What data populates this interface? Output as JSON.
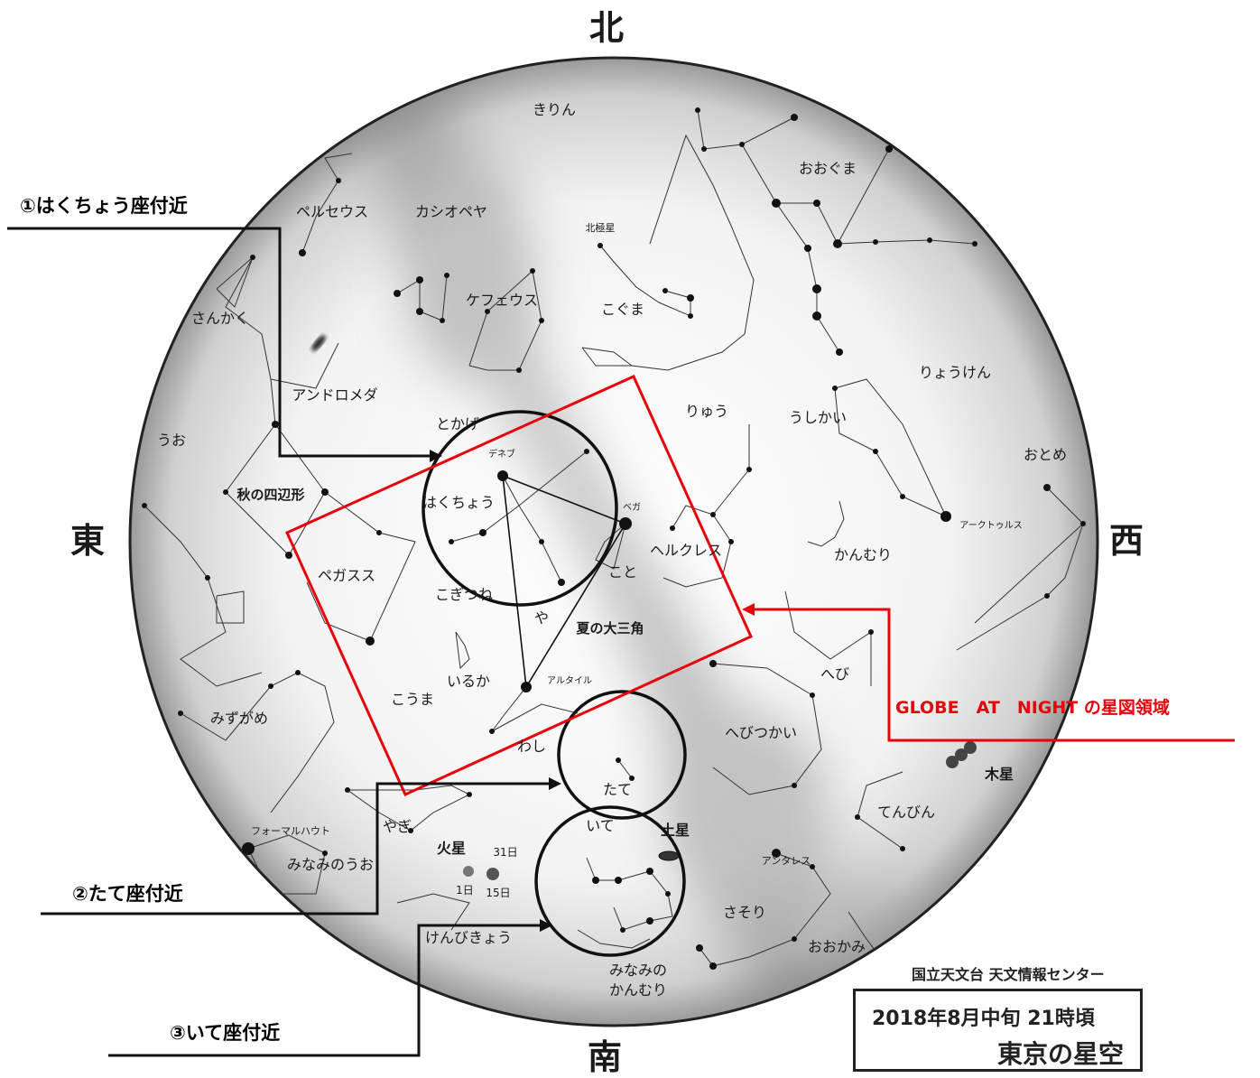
{
  "directions": {
    "north": "北",
    "south": "南",
    "east": "東",
    "west": "西"
  },
  "callouts": {
    "cygnus": "①はくちょう座付近",
    "scutum": "②たて座付近",
    "sagittarius": "③いて座付近",
    "globe_at_night": "GLOBE　AT　NIGHT の星図領域"
  },
  "credit": "国立天文台 天文情報センター",
  "date_box": {
    "date": "2018年8月中旬 21時頃",
    "title": "東京の星空"
  },
  "constellation_labels": [
    "きりん",
    "おおぐま",
    "ペルセウス",
    "カシオペヤ",
    "北極星",
    "ケフェウス",
    "こぐま",
    "さんかく",
    "りょうけん",
    "アンドロメダ",
    "りゅう",
    "うしかい",
    "とかげ",
    "うお",
    "おとめ",
    "デネブ",
    "秋の四辺形",
    "はくちょう",
    "ベガ",
    "アークトゥルス",
    "ヘルクレス",
    "かんむり",
    "ペガスス",
    "こと",
    "こぎつね",
    "や",
    "夏の大三角",
    "いるか",
    "アルタイル",
    "へび",
    "こうま",
    "みずがめ",
    "わし",
    "へびつかい",
    "たて",
    "いて",
    "土星",
    "てんびん",
    "フォーマルハウト",
    "やぎ",
    "火星",
    "31日",
    "1日",
    "15日",
    "みなみのうお",
    "アンタレス",
    "さそり",
    "けんびきょう",
    "おおかみ",
    "みなみの",
    "かんむり",
    "木星"
  ],
  "colors": {
    "accent": "#e8000b",
    "ink": "#1a1a1a"
  }
}
